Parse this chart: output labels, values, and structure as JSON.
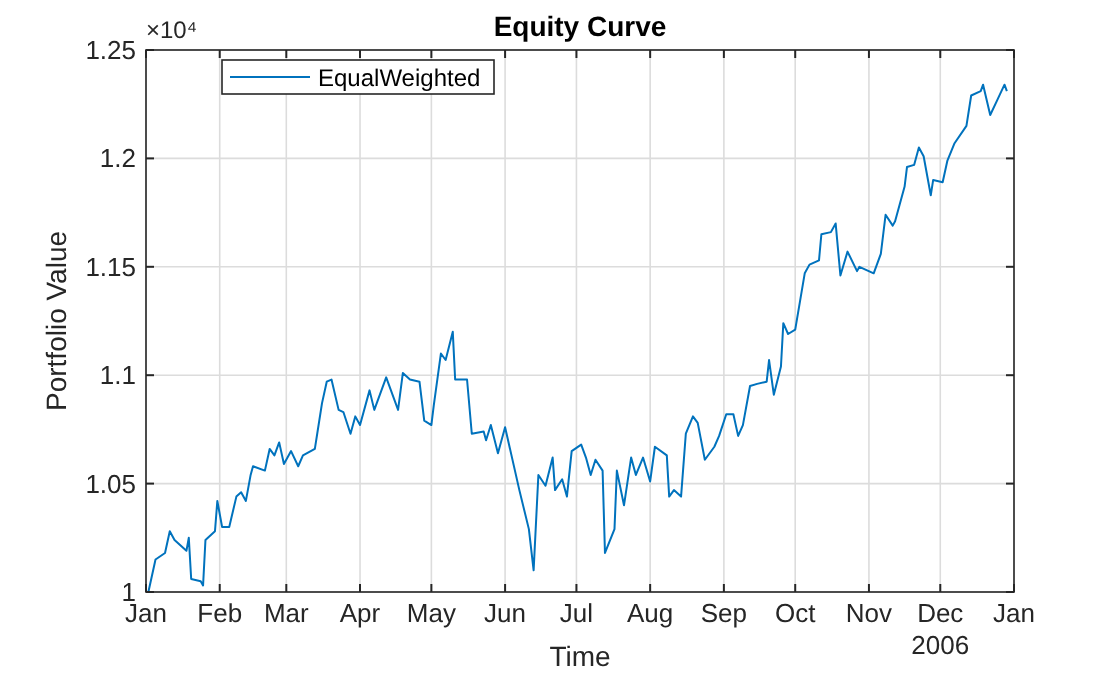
{
  "chart_data": {
    "type": "line",
    "title": "Equity Curve",
    "xlabel": "Time",
    "ylabel": "Portfolio Value",
    "annotations": [
      "×10⁴"
    ],
    "xlim": [
      "2006-01-01",
      "2007-01-01"
    ],
    "xticks": [
      {
        "value": "2006-01-01",
        "label": "Jan"
      },
      {
        "value": "2006-02-01",
        "label": "Feb"
      },
      {
        "value": "2006-03-01",
        "label": "Mar"
      },
      {
        "value": "2006-04-01",
        "label": "Apr"
      },
      {
        "value": "2006-05-01",
        "label": "May"
      },
      {
        "value": "2006-06-01",
        "label": "Jun"
      },
      {
        "value": "2006-07-01",
        "label": "Jul"
      },
      {
        "value": "2006-08-01",
        "label": "Aug"
      },
      {
        "value": "2006-09-01",
        "label": "Sep"
      },
      {
        "value": "2006-10-01",
        "label": "Oct"
      },
      {
        "value": "2006-11-01",
        "label": "Nov"
      },
      {
        "value": "2006-12-01",
        "label": "Dec\n2006"
      },
      {
        "value": "2007-01-01",
        "label": "Jan"
      }
    ],
    "ylim": [
      1,
      1.25
    ],
    "yticks": [
      1,
      1.05,
      1.1,
      1.15,
      1.2,
      1.25
    ],
    "grid": true,
    "legend": "top left",
    "marker": "none",
    "line_style": "solid",
    "x": [
      "2006-01-02",
      "2006-01-05",
      "2006-01-09",
      "2006-01-11",
      "2006-01-13",
      "2006-01-18",
      "2006-01-19",
      "2006-01-20",
      "2006-01-24",
      "2006-01-25",
      "2006-01-26",
      "2006-01-30",
      "2006-01-31",
      "2006-02-02",
      "2006-02-05",
      "2006-02-08",
      "2006-02-10",
      "2006-02-12",
      "2006-02-14",
      "2006-02-15",
      "2006-02-20",
      "2006-02-22",
      "2006-02-24",
      "2006-02-26",
      "2006-02-28",
      "2006-03-03",
      "2006-03-06",
      "2006-03-08",
      "2006-03-13",
      "2006-03-14",
      "2006-03-16",
      "2006-03-18",
      "2006-03-20",
      "2006-03-23",
      "2006-03-25",
      "2006-03-28",
      "2006-03-30",
      "2006-04-01",
      "2006-04-05",
      "2006-04-07",
      "2006-04-12",
      "2006-04-17",
      "2006-04-19",
      "2006-04-22",
      "2006-04-26",
      "2006-04-28",
      "2006-05-01",
      "2006-05-02",
      "2006-05-05",
      "2006-05-07",
      "2006-05-10",
      "2006-05-11",
      "2006-05-16",
      "2006-05-18",
      "2006-05-23",
      "2006-05-24",
      "2006-05-26",
      "2006-05-29",
      "2006-06-01",
      "2006-06-07",
      "2006-06-11",
      "2006-06-13",
      "2006-06-15",
      "2006-06-18",
      "2006-06-21",
      "2006-06-22",
      "2006-06-25",
      "2006-06-27",
      "2006-06-29",
      "2006-07-03",
      "2006-07-05",
      "2006-07-07",
      "2006-07-09",
      "2006-07-12",
      "2006-07-13",
      "2006-07-17",
      "2006-07-18",
      "2006-07-21",
      "2006-07-24",
      "2006-07-26",
      "2006-07-29",
      "2006-08-01",
      "2006-08-03",
      "2006-08-08",
      "2006-08-09",
      "2006-08-11",
      "2006-08-14",
      "2006-08-16",
      "2006-08-19",
      "2006-08-21",
      "2006-08-24",
      "2006-08-28",
      "2006-08-30",
      "2006-09-02",
      "2006-09-05",
      "2006-09-07",
      "2006-09-09",
      "2006-09-12",
      "2006-09-15",
      "2006-09-19",
      "2006-09-20",
      "2006-09-22",
      "2006-09-25",
      "2006-09-26",
      "2006-09-28",
      "2006-10-01",
      "2006-10-05",
      "2006-10-07",
      "2006-10-11",
      "2006-10-12",
      "2006-10-16",
      "2006-10-18",
      "2006-10-20",
      "2006-10-23",
      "2006-10-27",
      "2006-10-28",
      "2006-11-03",
      "2006-11-06",
      "2006-11-08",
      "2006-11-11",
      "2006-11-12",
      "2006-11-16",
      "2006-11-17",
      "2006-11-20",
      "2006-11-22",
      "2006-11-24",
      "2006-11-27",
      "2006-11-28",
      "2006-12-02",
      "2006-12-04",
      "2006-12-07",
      "2006-12-12",
      "2006-12-14",
      "2006-12-18",
      "2006-12-19",
      "2006-12-22",
      "2006-12-25",
      "2006-12-28",
      "2006-12-29"
    ],
    "series": [
      {
        "name": "EqualWeighted",
        "color": "#0072bd",
        "values": [
          1.0,
          1.015,
          1.018,
          1.028,
          1.024,
          1.019,
          1.025,
          1.006,
          1.005,
          1.003,
          1.024,
          1.028,
          1.042,
          1.03,
          1.03,
          1.044,
          1.046,
          1.042,
          1.054,
          1.058,
          1.056,
          1.066,
          1.063,
          1.069,
          1.059,
          1.065,
          1.058,
          1.063,
          1.066,
          1.073,
          1.087,
          1.097,
          1.098,
          1.084,
          1.083,
          1.073,
          1.081,
          1.077,
          1.093,
          1.084,
          1.099,
          1.084,
          1.101,
          1.098,
          1.097,
          1.079,
          1.077,
          1.086,
          1.11,
          1.107,
          1.12,
          1.098,
          1.098,
          1.073,
          1.074,
          1.07,
          1.077,
          1.064,
          1.076,
          1.047,
          1.029,
          1.01,
          1.054,
          1.049,
          1.062,
          1.047,
          1.052,
          1.044,
          1.065,
          1.068,
          1.062,
          1.054,
          1.061,
          1.056,
          1.018,
          1.029,
          1.056,
          1.04,
          1.062,
          1.054,
          1.062,
          1.051,
          1.067,
          1.063,
          1.044,
          1.047,
          1.044,
          1.073,
          1.081,
          1.078,
          1.061,
          1.067,
          1.072,
          1.082,
          1.082,
          1.072,
          1.077,
          1.095,
          1.096,
          1.097,
          1.107,
          1.091,
          1.104,
          1.124,
          1.119,
          1.121,
          1.147,
          1.151,
          1.153,
          1.165,
          1.166,
          1.17,
          1.146,
          1.157,
          1.148,
          1.15,
          1.147,
          1.156,
          1.174,
          1.169,
          1.171,
          1.187,
          1.196,
          1.197,
          1.205,
          1.201,
          1.183,
          1.19,
          1.189,
          1.199,
          1.207,
          1.215,
          1.229,
          1.231,
          1.234,
          1.22,
          1.227,
          1.234,
          1.231
        ]
      }
    ]
  }
}
